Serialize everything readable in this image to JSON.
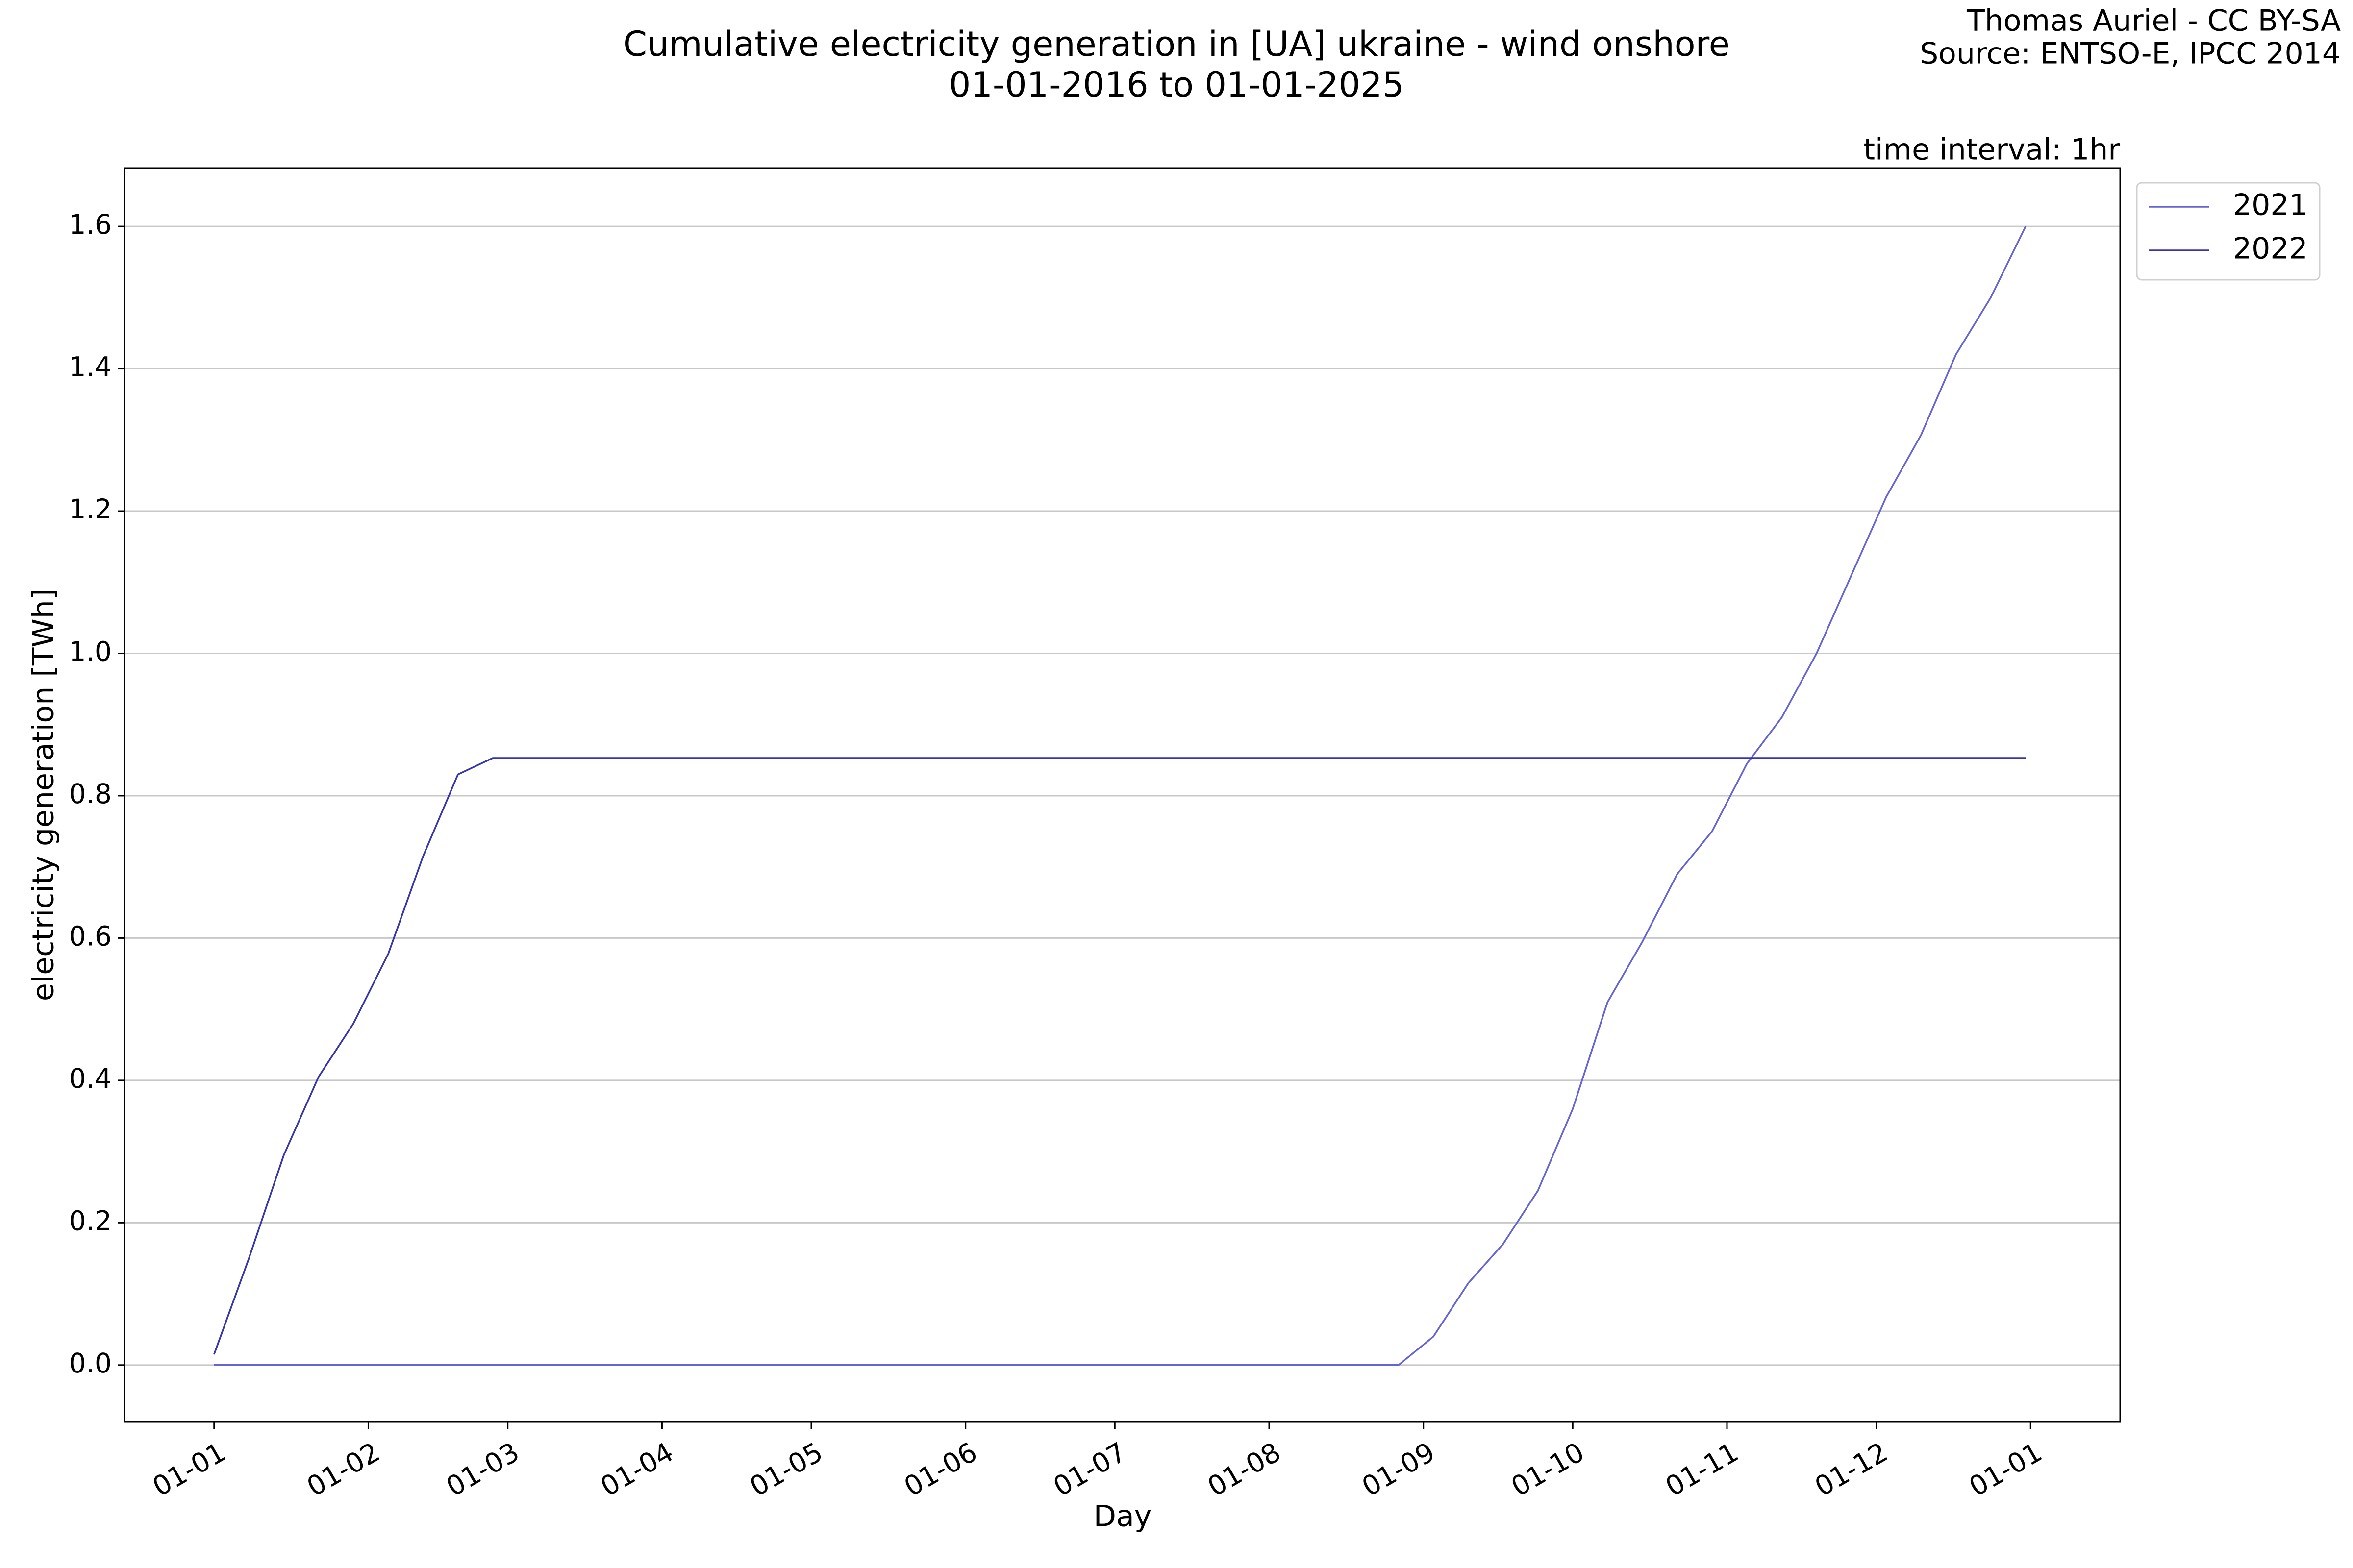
{
  "chart_data": {
    "type": "line",
    "title": "Cumulative electricity generation in [UA] ukraine - wind onshore",
    "subtitle": "01-01-2016 to 01-01-2025",
    "annotations": [
      "Thomas Auriel - CC BY-SA",
      "Source: ENTSO-E, IPCC 2014",
      "time interval: 1hr"
    ],
    "x_label": "Day",
    "y_label": "electricity generation [TWh]",
    "x": [
      0,
      7,
      14,
      21,
      28,
      35,
      42,
      49,
      56,
      63,
      70,
      77,
      84,
      91,
      98,
      105,
      112,
      119,
      126,
      133,
      140,
      147,
      154,
      161,
      168,
      175,
      182,
      189,
      196,
      203,
      210,
      217,
      224,
      231,
      238,
      245,
      252,
      259,
      266,
      273,
      280,
      287,
      294,
      301,
      308,
      315,
      322,
      329,
      336,
      343,
      350,
      357,
      364
    ],
    "series": [
      {
        "name": "2021",
        "color": "#6464d2",
        "values": [
          0,
          0,
          0,
          0,
          0,
          0,
          0,
          0,
          0,
          0,
          0,
          0,
          0,
          0,
          0,
          0,
          0,
          0,
          0,
          0,
          0,
          0,
          0,
          0,
          0,
          0,
          0,
          0,
          0,
          0,
          0,
          0,
          0,
          0,
          0,
          0.04,
          0.115,
          0.17,
          0.245,
          0.36,
          0.51,
          0.595,
          0.69,
          0.75,
          0.845,
          0.91,
          1.0,
          1.11,
          1.22,
          1.307,
          1.42,
          1.5,
          1.6
        ]
      },
      {
        "name": "2022",
        "color": "#3636a8",
        "values": [
          0.015,
          0.15,
          0.295,
          0.405,
          0.48,
          0.578,
          0.715,
          0.83,
          0.853,
          0.853,
          0.853,
          0.853,
          0.853,
          0.853,
          0.853,
          0.853,
          0.853,
          0.853,
          0.853,
          0.853,
          0.853,
          0.853,
          0.853,
          0.853,
          0.853,
          0.853,
          0.853,
          0.853,
          0.853,
          0.853,
          0.853,
          0.853,
          0.853,
          0.853,
          0.853,
          0.853,
          0.853,
          0.853,
          0.853,
          0.853,
          0.853,
          0.853,
          0.853,
          0.853,
          0.853,
          0.853,
          0.853,
          0.853,
          0.853,
          0.853,
          0.853,
          0.853,
          0.853
        ]
      }
    ],
    "xlim": [
      -18,
      383
    ],
    "xticks": [
      {
        "value": 0,
        "label": "01-01"
      },
      {
        "value": 31,
        "label": "01-02"
      },
      {
        "value": 59,
        "label": "01-03"
      },
      {
        "value": 90,
        "label": "01-04"
      },
      {
        "value": 120,
        "label": "01-05"
      },
      {
        "value": 151,
        "label": "01-06"
      },
      {
        "value": 181,
        "label": "01-07"
      },
      {
        "value": 212,
        "label": "01-08"
      },
      {
        "value": 243,
        "label": "01-09"
      },
      {
        "value": 273,
        "label": "01-10"
      },
      {
        "value": 304,
        "label": "01-11"
      },
      {
        "value": 334,
        "label": "01-12"
      },
      {
        "value": 365,
        "label": "01-01"
      }
    ],
    "ylim": [
      -0.08,
      1.682
    ],
    "yticks": [
      {
        "value": 0,
        "label": "0.0"
      },
      0.2,
      0.4,
      0.6,
      0.8,
      {
        "value": 1,
        "label": "1.0"
      },
      1.2,
      1.4,
      1.6
    ],
    "grid": true,
    "legend": "outside-upper-right"
  }
}
